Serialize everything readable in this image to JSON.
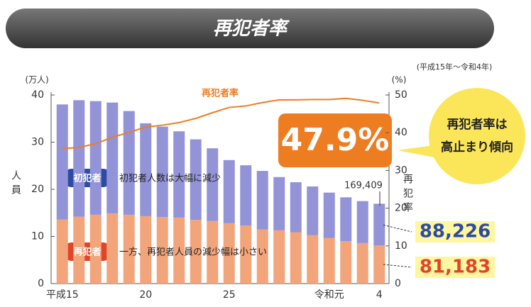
{
  "chart_data": {
    "type": "bar",
    "title": "再犯者率",
    "subtitle": "(平成15年～令和4年)",
    "y_unit": "(万人)",
    "y_label": "人員",
    "y2_unit": "(%)",
    "y2_label": "再犯率",
    "categories": [
      "平成15",
      null,
      null,
      null,
      null,
      "20",
      null,
      null,
      null,
      null,
      "25",
      null,
      null,
      null,
      null,
      null,
      "令和元",
      null,
      null,
      "4"
    ],
    "series": [
      {
        "name": "再犯者",
        "color": "#f2a57a",
        "values": [
          13.6,
          14.2,
          14.6,
          14.9,
          14.6,
          14.3,
          14.1,
          14.0,
          13.5,
          13.3,
          12.8,
          12.3,
          11.5,
          11.3,
          10.9,
          10.3,
          9.7,
          9.0,
          8.6,
          8.1183
        ],
        "value_labels": [
          null,
          null,
          null,
          null,
          null,
          null,
          null,
          null,
          null,
          null,
          null,
          null,
          null,
          null,
          null,
          null,
          null,
          null,
          null,
          "81,183"
        ]
      },
      {
        "name": "初犯者",
        "color": "#9393d8",
        "values": [
          24.4,
          24.7,
          24.1,
          23.5,
          22.0,
          19.7,
          19.2,
          18.3,
          17.1,
          15.4,
          13.4,
          12.8,
          12.4,
          11.3,
          10.6,
          10.3,
          9.6,
          9.3,
          8.9,
          8.8226
        ],
        "value_labels": [
          null,
          null,
          null,
          null,
          null,
          null,
          null,
          null,
          null,
          null,
          null,
          null,
          null,
          null,
          null,
          null,
          null,
          null,
          null,
          "88,226"
        ]
      },
      {
        "name": "再犯者率",
        "type": "line",
        "axis": "y2",
        "color": "#ee7d22",
        "values": [
          35.8,
          36.1,
          37.1,
          38.8,
          40.1,
          41.5,
          42.0,
          42.7,
          43.8,
          45.3,
          46.7,
          47.1,
          48.0,
          48.7,
          48.7,
          48.8,
          48.8,
          49.1,
          48.6,
          47.9
        ],
        "value_labels": [
          null,
          null,
          null,
          null,
          null,
          null,
          null,
          null,
          null,
          null,
          null,
          null,
          null,
          null,
          null,
          null,
          null,
          null,
          null,
          "47.9%"
        ]
      }
    ],
    "ylim": [
      0,
      40
    ],
    "yticks": [
      0,
      10,
      20,
      30,
      40
    ],
    "y2lim": [
      0,
      50
    ],
    "y2ticks": [
      0,
      10,
      20,
      30,
      40,
      50
    ],
    "grid": false,
    "annotations": {
      "total": "169,409",
      "first_note": "初犯者人数は大幅に減少",
      "repeat_note": "一方、再犯者人員の減少幅は小さい",
      "callout": [
        "再犯者率は",
        "高止まり傾向"
      ]
    }
  }
}
